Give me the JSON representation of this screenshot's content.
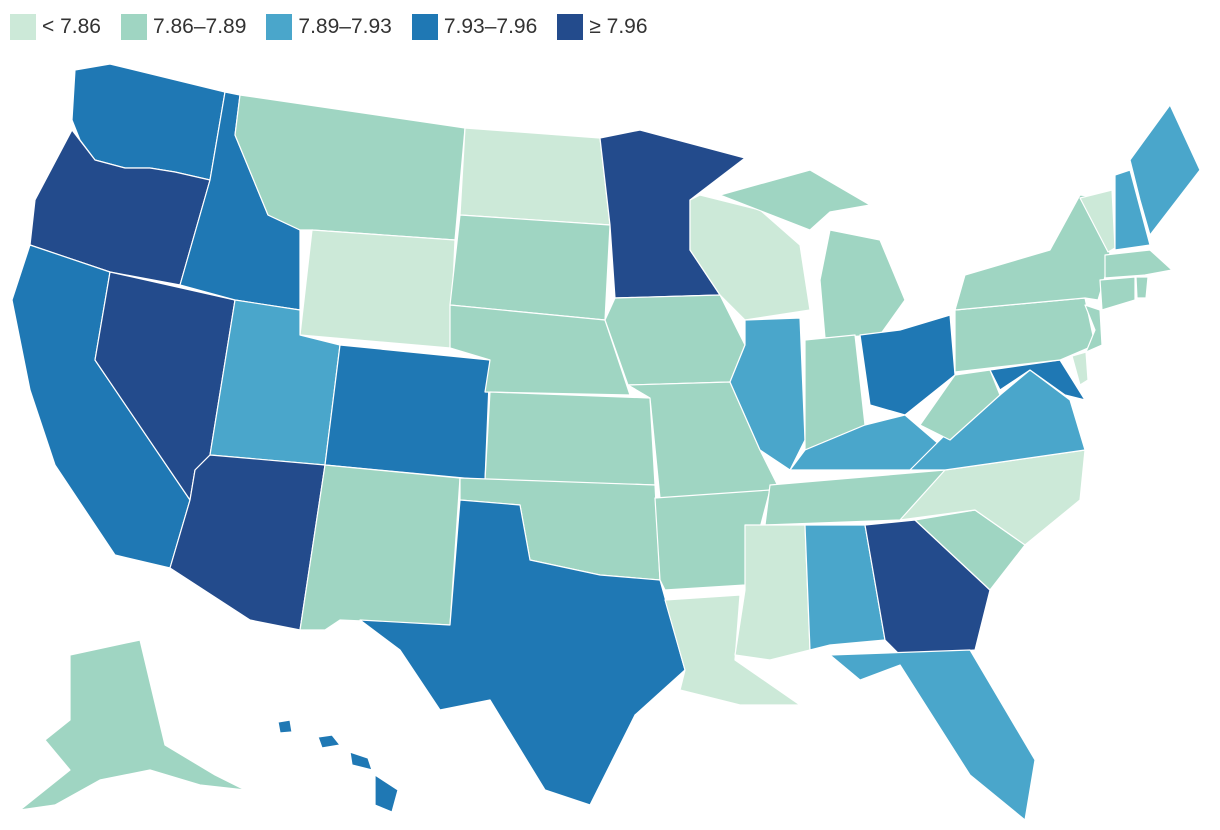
{
  "legend": [
    {
      "label": "< 7.86",
      "color": "#cce9d8"
    },
    {
      "label": "7.86–7.89",
      "color": "#9fd5c2"
    },
    {
      "label": "7.89–7.93",
      "color": "#4aa6cb"
    },
    {
      "label": "7.93–7.96",
      "color": "#1f78b4"
    },
    {
      "label": "≥ 7.96",
      "color": "#234b8c"
    }
  ],
  "states": {
    "WA": 3,
    "OR": 4,
    "CA": 3,
    "NV": 4,
    "ID": 3,
    "MT": 1,
    "WY": 0,
    "UT": 2,
    "AZ": 4,
    "CO": 3,
    "NM": 1,
    "ND": 0,
    "SD": 1,
    "NE": 1,
    "KS": 1,
    "OK": 1,
    "TX": 3,
    "MN": 4,
    "IA": 1,
    "MO": 1,
    "AR": 1,
    "LA": 0,
    "WI": 0,
    "IL": 2,
    "MI": 1,
    "IN": 1,
    "OH": 3,
    "KY": 2,
    "TN": 1,
    "MS": 0,
    "AL": 2,
    "GA": 4,
    "FL": 2,
    "SC": 1,
    "NC": 0,
    "VA": 2,
    "WV": 1,
    "MD": 3,
    "DE": 0,
    "NJ": 1,
    "PA": 1,
    "NY": 1,
    "VT": 0,
    "NH": 2,
    "ME": 2,
    "MA": 1,
    "CT": 1,
    "RI": 1,
    "AK": 1,
    "HI": 3
  }
}
